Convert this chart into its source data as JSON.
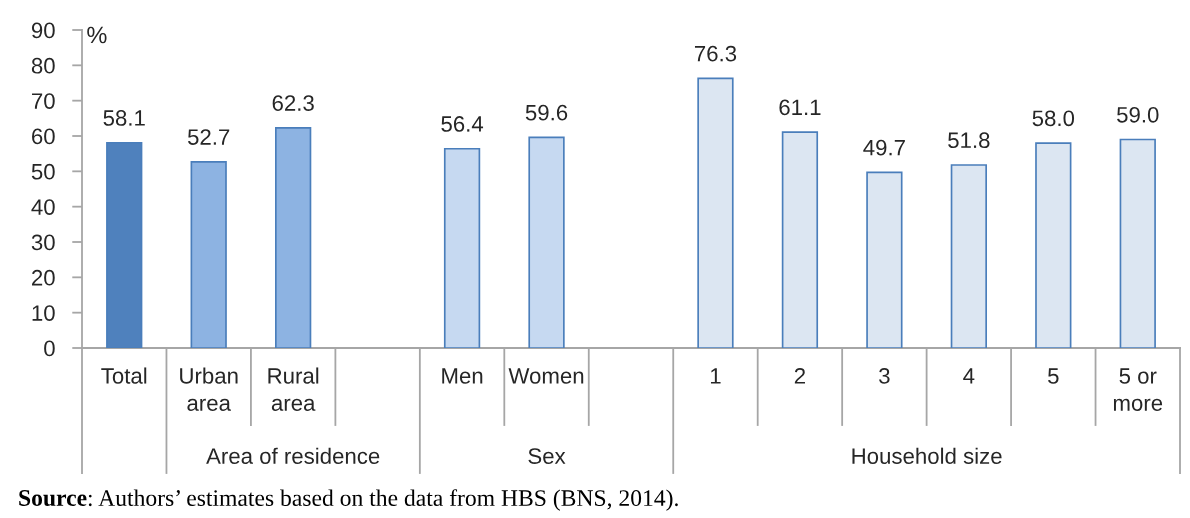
{
  "chart_data": {
    "type": "bar",
    "ylabel": "%",
    "categories": [
      "Total",
      "Urban area",
      "Rural area",
      null,
      "Men",
      "Women",
      null,
      "1",
      "2",
      "3",
      "4",
      "5",
      "5 or more"
    ],
    "values": [
      58.1,
      52.7,
      62.3,
      null,
      56.4,
      59.6,
      null,
      76.3,
      61.1,
      49.7,
      51.8,
      58.0,
      59.0
    ],
    "colors": [
      "#4f81bd",
      "#8db3e2",
      "#8db3e2",
      null,
      "#c6d9f1",
      "#c6d9f1",
      null,
      "#dce6f2",
      "#dce6f2",
      "#dce6f2",
      "#dce6f2",
      "#dce6f2",
      "#dce6f2"
    ],
    "value_labels": [
      "58.1",
      "52.7",
      "62.3",
      null,
      "56.4",
      "59.6",
      null,
      "76.3",
      "61.1",
      "49.7",
      "51.8",
      "58.0",
      "59.0"
    ],
    "ylim": [
      0,
      90
    ],
    "yticks": [
      0,
      10,
      20,
      30,
      40,
      50,
      60,
      70,
      80,
      90
    ],
    "annotations": [
      "Area of residence",
      "Sex",
      "Household size",
      "Source: Authors’ estimates based on the data from HBS (BNS, 2014)."
    ]
  }
}
